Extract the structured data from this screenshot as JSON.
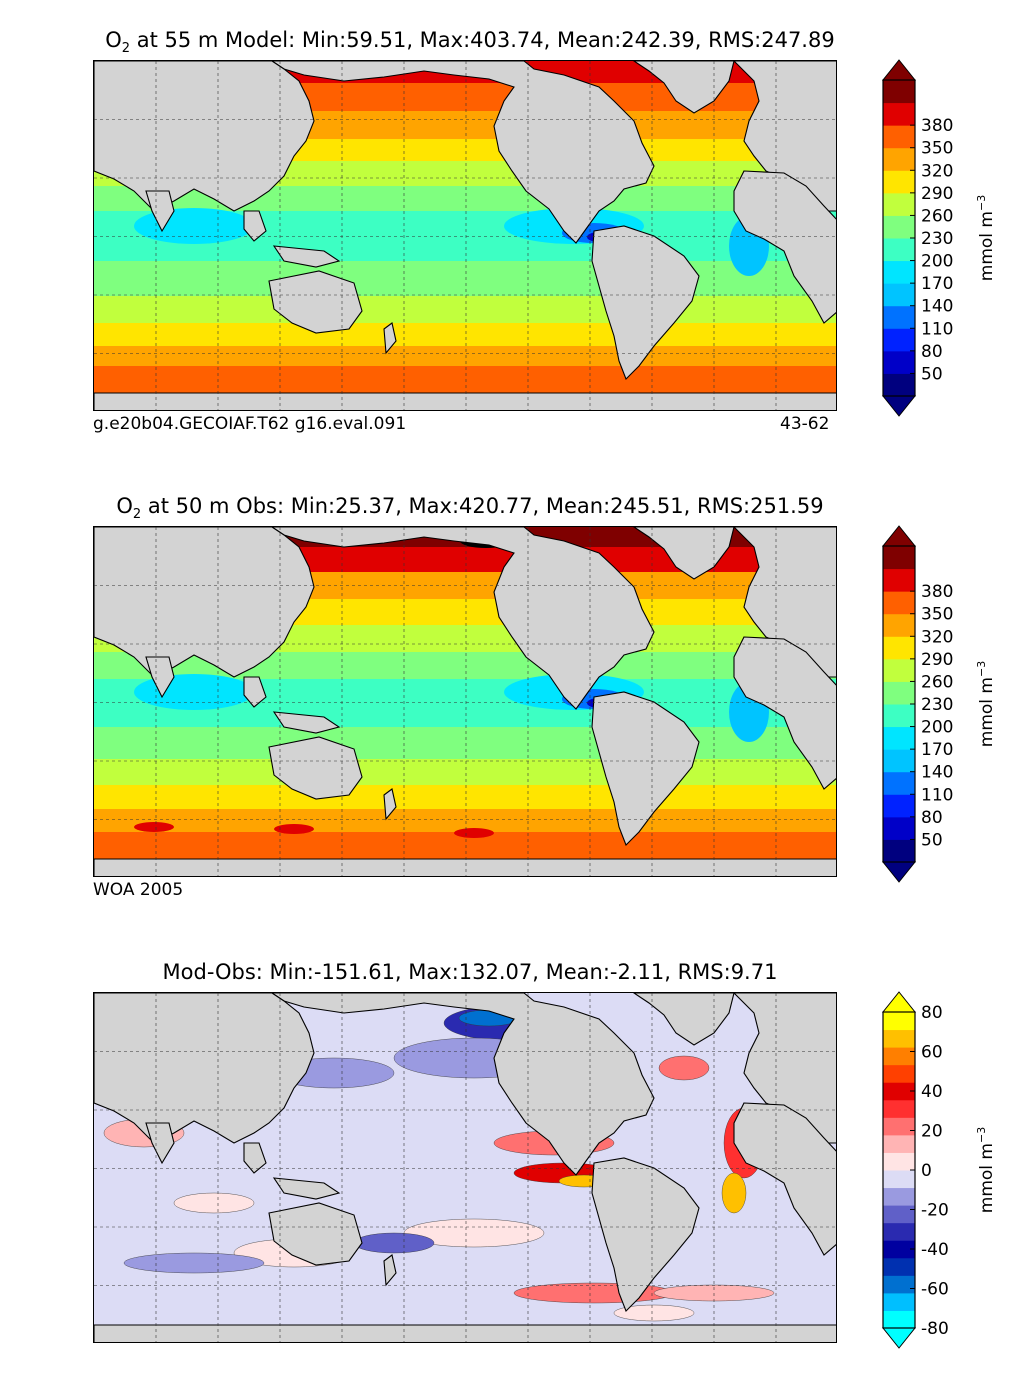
{
  "panels": [
    {
      "title_prefix": "O",
      "title_sub": "2",
      "title_rest": " at 55 m Model: Min:59.51, Max:403.74, Mean:242.39, RMS:247.89",
      "caption_left": "g.e20b04.GECOIAF.T62 g16.eval.091",
      "caption_right": "43-62",
      "colorbar": {
        "label": "mmol m",
        "label_sup": "−3",
        "ticks": [
          "50",
          "80",
          "110",
          "140",
          "170",
          "200",
          "230",
          "260",
          "290",
          "320",
          "350",
          "380"
        ],
        "colors": [
          "#00007f",
          "#0000c8",
          "#0022ff",
          "#0072ff",
          "#00c4ff",
          "#00e5ff",
          "#3dffc3",
          "#7fff7f",
          "#c1ff3d",
          "#ffe500",
          "#ffa400",
          "#ff6000",
          "#e00000",
          "#7f0000"
        ]
      }
    },
    {
      "title_prefix": "O",
      "title_sub": "2",
      "title_rest": " at 50 m Obs: Min:25.37, Max:420.77, Mean:245.51, RMS:251.59",
      "caption_left": "WOA 2005",
      "caption_right": "",
      "colorbar": {
        "label": "mmol m",
        "label_sup": "−3",
        "ticks": [
          "50",
          "80",
          "110",
          "140",
          "170",
          "200",
          "230",
          "260",
          "290",
          "320",
          "350",
          "380"
        ],
        "colors": [
          "#00007f",
          "#0000c8",
          "#0022ff",
          "#0072ff",
          "#00c4ff",
          "#00e5ff",
          "#3dffc3",
          "#7fff7f",
          "#c1ff3d",
          "#ffe500",
          "#ffa400",
          "#ff6000",
          "#e00000",
          "#7f0000"
        ]
      }
    },
    {
      "title_prefix": "",
      "title_sub": "",
      "title_rest": "Mod-Obs: Min:-151.61, Max:132.07, Mean:-2.11, RMS:9.71",
      "caption_left": "",
      "caption_right": "",
      "colorbar": {
        "label": "mmol m",
        "label_sup": "−3",
        "ticks": [
          "-80",
          "-60",
          "-40",
          "-20",
          "0",
          "20",
          "40",
          "60",
          "80"
        ],
        "colors": [
          "#00ffff",
          "#00bfff",
          "#0070d0",
          "#0030b0",
          "#0000a0",
          "#2a2ab0",
          "#6060c8",
          "#9a9ae0",
          "#dcdcf5",
          "#ffe4e4",
          "#ffb4b4",
          "#ff7070",
          "#ff3030",
          "#e00000",
          "#ff4000",
          "#ff7f00",
          "#ffc000",
          "#ffff00"
        ]
      }
    }
  ],
  "chart_data": [
    {
      "type": "heatmap",
      "title": "O2 at 55 m Model: Min:59.51, Max:403.74, Mean:242.39, RMS:247.89",
      "variable": "O2",
      "depth": "55 m",
      "source": "Model",
      "stats": {
        "min": 59.51,
        "max": 403.74,
        "mean": 242.39,
        "rms": 247.89
      },
      "colorbar": {
        "label": "mmol m-3",
        "ticks": [
          50,
          80,
          110,
          140,
          170,
          200,
          230,
          260,
          290,
          320,
          350,
          380
        ],
        "extend": "both"
      },
      "grid": true
    },
    {
      "type": "heatmap",
      "title": "O2 at 50 m Obs: Min:25.37, Max:420.77, Mean:245.51, RMS:251.59",
      "variable": "O2",
      "depth": "50 m",
      "source": "Obs",
      "stats": {
        "min": 25.37,
        "max": 420.77,
        "mean": 245.51,
        "rms": 251.59
      },
      "colorbar": {
        "label": "mmol m-3",
        "ticks": [
          50,
          80,
          110,
          140,
          170,
          200,
          230,
          260,
          290,
          320,
          350,
          380
        ],
        "extend": "both"
      },
      "grid": true
    },
    {
      "type": "heatmap",
      "title": "Mod-Obs: Min:-151.61, Max:132.07, Mean:-2.11, RMS:9.71",
      "source": "Mod-Obs",
      "stats": {
        "min": -151.61,
        "max": 132.07,
        "mean": -2.11,
        "rms": 9.71
      },
      "colorbar": {
        "label": "mmol m-3",
        "ticks": [
          -80,
          -60,
          -40,
          -20,
          0,
          20,
          40,
          60,
          80
        ],
        "extend": "both"
      },
      "grid": true
    }
  ]
}
